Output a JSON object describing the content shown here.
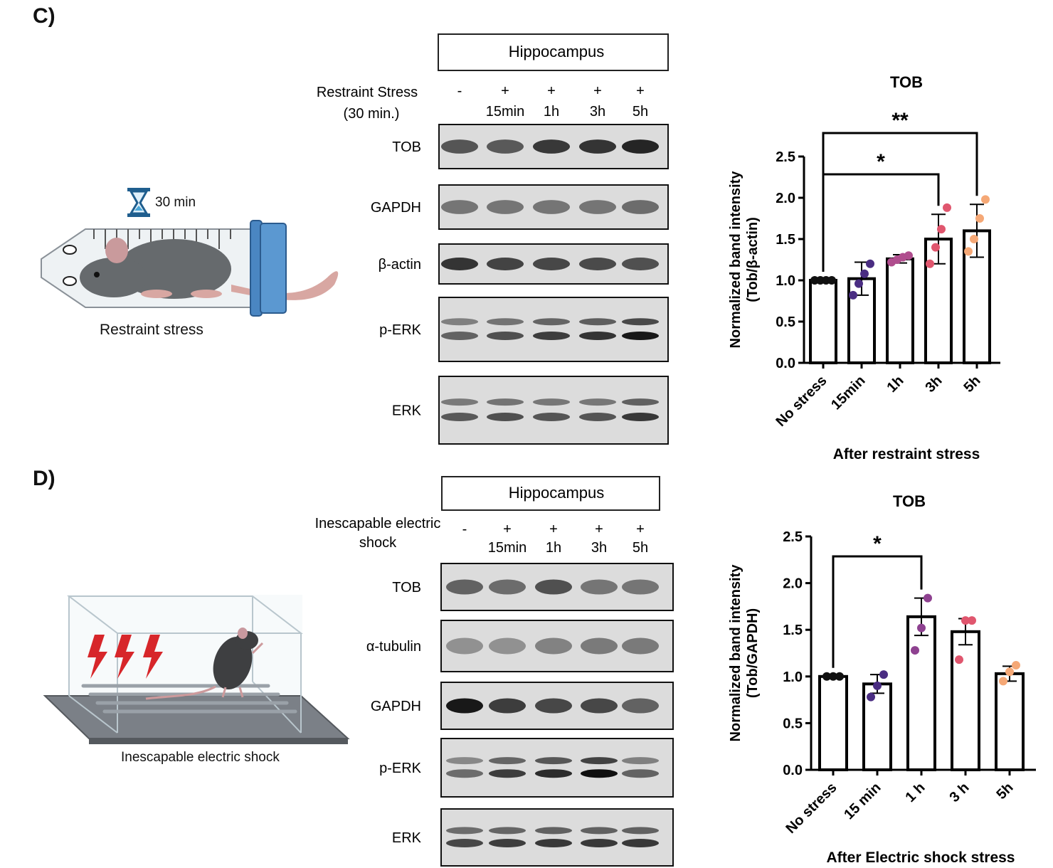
{
  "panel_c": {
    "label": "C)",
    "illustration": {
      "timer": "30 min",
      "caption": "Restraint stress"
    },
    "blot": {
      "region": "Hippocampus",
      "condition_line1": "Restraint Stress",
      "condition_line2": "(30 min.)",
      "signs": [
        "-",
        "+",
        "+",
        "+",
        "+"
      ],
      "times": [
        "",
        "15min",
        "1h",
        "3h",
        "5h"
      ],
      "rows": [
        {
          "label": "TOB",
          "intensities": [
            0.62,
            0.6,
            0.78,
            0.8,
            0.88
          ],
          "double": false
        },
        {
          "label": "GAPDH",
          "intensities": [
            0.45,
            0.45,
            0.45,
            0.45,
            0.5
          ],
          "double": false
        },
        {
          "label": "β-actin",
          "intensities": [
            0.8,
            0.72,
            0.7,
            0.68,
            0.65
          ],
          "double": false
        },
        {
          "label": "p-ERK",
          "intensities": [
            0.55,
            0.65,
            0.75,
            0.8,
            0.95
          ],
          "double": true
        },
        {
          "label": "ERK",
          "intensities": [
            0.6,
            0.65,
            0.62,
            0.62,
            0.78
          ],
          "double": true
        }
      ]
    }
  },
  "panel_d": {
    "label": "D)",
    "illustration": {
      "caption": "Inescapable electric shock"
    },
    "blot": {
      "region": "Hippocampus",
      "condition_line1": "Inescapable electric",
      "condition_line2": "shock",
      "signs": [
        "-",
        "+",
        "+",
        "+",
        "+"
      ],
      "times": [
        "",
        "15min",
        "1h",
        "3h",
        "5h"
      ],
      "rows": [
        {
          "label": "TOB",
          "intensities": [
            0.55,
            0.5,
            0.65,
            0.45,
            0.45
          ],
          "double": false
        },
        {
          "label": "α-tubulin",
          "intensities": [
            0.3,
            0.3,
            0.38,
            0.42,
            0.42
          ],
          "double": false
        },
        {
          "label": "GAPDH",
          "intensities": [
            0.95,
            0.75,
            0.7,
            0.7,
            0.55
          ],
          "double": false
        },
        {
          "label": "p-ERK",
          "intensities": [
            0.5,
            0.75,
            0.85,
            1.0,
            0.55
          ],
          "double": true
        },
        {
          "label": "ERK",
          "intensities": [
            0.7,
            0.75,
            0.78,
            0.78,
            0.78
          ],
          "double": true
        }
      ]
    }
  },
  "chart_data": [
    {
      "type": "bar",
      "title": "TOB",
      "xlabel": "After restraint stress",
      "ylabel": [
        "Normalized band intensity",
        "(Tob/β-actin)"
      ],
      "categories": [
        "No stress",
        "15min",
        "1h",
        "3h",
        "5h"
      ],
      "values": [
        1.0,
        1.02,
        1.26,
        1.5,
        1.6
      ],
      "errors": [
        0.02,
        0.2,
        0.05,
        0.3,
        0.32
      ],
      "points": [
        [
          1.0,
          1.0,
          1.0,
          1.0
        ],
        [
          0.82,
          0.96,
          1.08,
          1.2
        ],
        [
          1.22,
          1.25,
          1.28,
          1.3
        ],
        [
          1.2,
          1.4,
          1.62,
          1.88
        ],
        [
          1.35,
          1.5,
          1.75,
          1.98
        ]
      ],
      "point_colors": [
        "#111111",
        "#4a2d82",
        "#b04d8e",
        "#e0566e",
        "#f5a876"
      ],
      "ylim": [
        0,
        2.5
      ],
      "yticks": [
        "0.0",
        "0.5",
        "1.0",
        "1.5",
        "2.0",
        "2.5"
      ],
      "significance": [
        {
          "from": "No stress",
          "to": "3h",
          "label": "*"
        },
        {
          "from": "No stress",
          "to": "5h",
          "label": "**"
        }
      ]
    },
    {
      "type": "bar",
      "title": "TOB",
      "xlabel": "After Electric shock stress",
      "ylabel": [
        "Normalized band intensity",
        "(Tob/GAPDH)"
      ],
      "categories": [
        "No stress",
        "15 min",
        "1 h",
        "3 h",
        "5h"
      ],
      "values": [
        1.0,
        0.92,
        1.64,
        1.48,
        1.03
      ],
      "errors": [
        0.02,
        0.1,
        0.2,
        0.14,
        0.08
      ],
      "points": [
        [
          1.0,
          1.0,
          1.0
        ],
        [
          0.78,
          0.9,
          1.02
        ],
        [
          1.28,
          1.52,
          1.84
        ],
        [
          1.18,
          1.6,
          1.6
        ],
        [
          0.95,
          1.05,
          1.12
        ]
      ],
      "point_colors": [
        "#111111",
        "#4a2d82",
        "#8e4190",
        "#e0566e",
        "#f5a876"
      ],
      "ylim": [
        0,
        2.5
      ],
      "yticks": [
        "0.0",
        "0.5",
        "1.0",
        "1.5",
        "2.0",
        "2.5"
      ],
      "significance": [
        {
          "from": "No stress",
          "to": "1 h",
          "label": "*"
        }
      ]
    }
  ]
}
